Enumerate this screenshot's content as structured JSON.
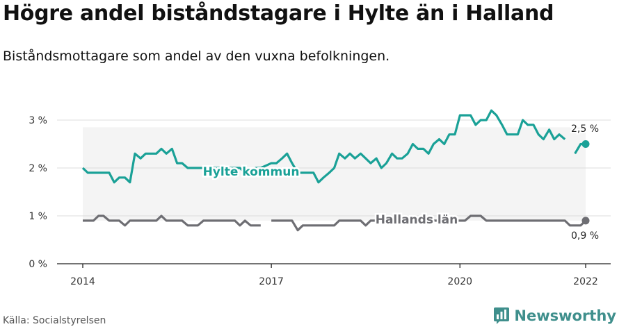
{
  "title": "Högre andel biståndstagare i Hylte än i Halland",
  "subtitle": "Biståndsmottagare som andel av den vuxna befolkningen.",
  "source": "Källa: Socialstyrelsen",
  "brand": "Newsworthy",
  "colors": {
    "hylte": "#1aa197",
    "halland": "#6e6e73",
    "band": "#f4f4f4",
    "grid": "#dddddd",
    "brand": "#3f8f8c"
  },
  "chart_data": {
    "type": "line",
    "x_ticks": [
      "2014",
      "2017",
      "2020",
      "2022"
    ],
    "y_ticks": [
      "0 %",
      "1 %",
      "2 %",
      "3 %"
    ],
    "ylim": [
      0,
      3.3
    ],
    "series": [
      {
        "name": "Hylte kommun",
        "end_label": "2,5 %",
        "points": [
          [
            2014.0,
            2.0
          ],
          [
            2014.08,
            1.9
          ],
          [
            2014.17,
            1.9
          ],
          [
            2014.25,
            1.9
          ],
          [
            2014.33,
            1.9
          ],
          [
            2014.42,
            1.9
          ],
          [
            2014.5,
            1.7
          ],
          [
            2014.58,
            1.8
          ],
          [
            2014.67,
            1.8
          ],
          [
            2014.75,
            1.7
          ],
          [
            2014.83,
            2.3
          ],
          [
            2014.92,
            2.2
          ],
          [
            2015.0,
            2.3
          ],
          [
            2015.08,
            2.3
          ],
          [
            2015.17,
            2.3
          ],
          [
            2015.25,
            2.4
          ],
          [
            2015.33,
            2.3
          ],
          [
            2015.42,
            2.4
          ],
          [
            2015.5,
            2.1
          ],
          [
            2015.58,
            2.1
          ],
          [
            2015.67,
            2.0
          ],
          [
            2015.75,
            2.0
          ],
          [
            2015.83,
            2.0
          ],
          [
            2016.0,
            2.0
          ],
          [
            2016.08,
            2.0
          ],
          [
            2016.17,
            2.0
          ],
          [
            2016.25,
            1.9
          ],
          [
            2016.33,
            2.0
          ],
          [
            2016.42,
            2.0
          ],
          [
            2016.5,
            2.0
          ],
          [
            2016.58,
            1.9
          ],
          [
            2016.67,
            1.9
          ],
          [
            2016.75,
            2.0
          ],
          [
            2016.83,
            2.0
          ],
          [
            2017.0,
            2.1
          ],
          [
            2017.08,
            2.1
          ],
          [
            2017.17,
            2.2
          ],
          [
            2017.25,
            2.3
          ],
          [
            2017.33,
            2.1
          ],
          [
            2017.42,
            1.9
          ],
          [
            2017.5,
            1.9
          ],
          [
            2017.58,
            1.9
          ],
          [
            2017.67,
            1.9
          ],
          [
            2017.75,
            1.7
          ],
          [
            2017.83,
            1.8
          ],
          [
            2017.92,
            1.9
          ],
          [
            2018.0,
            2.0
          ],
          [
            2018.08,
            2.3
          ],
          [
            2018.17,
            2.2
          ],
          [
            2018.25,
            2.3
          ],
          [
            2018.33,
            2.2
          ],
          [
            2018.42,
            2.3
          ],
          [
            2018.5,
            2.2
          ],
          [
            2018.58,
            2.1
          ],
          [
            2018.67,
            2.2
          ],
          [
            2018.75,
            2.0
          ],
          [
            2018.83,
            2.1
          ],
          [
            2018.92,
            2.3
          ],
          [
            2019.0,
            2.2
          ],
          [
            2019.08,
            2.2
          ],
          [
            2019.17,
            2.3
          ],
          [
            2019.25,
            2.5
          ],
          [
            2019.33,
            2.4
          ],
          [
            2019.42,
            2.4
          ],
          [
            2019.5,
            2.3
          ],
          [
            2019.58,
            2.5
          ],
          [
            2019.67,
            2.6
          ],
          [
            2019.75,
            2.5
          ],
          [
            2019.83,
            2.7
          ],
          [
            2019.92,
            2.7
          ],
          [
            2020.0,
            3.1
          ],
          [
            2020.08,
            3.1
          ],
          [
            2020.17,
            3.1
          ],
          [
            2020.25,
            2.9
          ],
          [
            2020.33,
            3.0
          ],
          [
            2020.42,
            3.0
          ],
          [
            2020.5,
            3.2
          ],
          [
            2020.58,
            3.1
          ],
          [
            2020.67,
            2.9
          ],
          [
            2020.75,
            2.7
          ],
          [
            2020.83,
            2.7
          ],
          [
            2020.92,
            2.7
          ],
          [
            2021.0,
            3.0
          ],
          [
            2021.08,
            2.9
          ],
          [
            2021.17,
            2.9
          ],
          [
            2021.25,
            2.7
          ],
          [
            2021.33,
            2.6
          ],
          [
            2021.42,
            2.8
          ],
          [
            2021.5,
            2.6
          ],
          [
            2021.58,
            2.7
          ],
          [
            2021.67,
            2.6
          ],
          null,
          [
            2021.83,
            2.3
          ],
          [
            2021.92,
            2.5
          ],
          [
            2022.0,
            2.5
          ]
        ]
      },
      {
        "name": "Hallands län",
        "end_label": "0,9 %",
        "points": [
          [
            2014.0,
            0.9
          ],
          [
            2014.08,
            0.9
          ],
          [
            2014.17,
            0.9
          ],
          [
            2014.25,
            1.0
          ],
          [
            2014.33,
            1.0
          ],
          [
            2014.42,
            0.9
          ],
          [
            2014.5,
            0.9
          ],
          [
            2014.58,
            0.9
          ],
          [
            2014.67,
            0.8
          ],
          [
            2014.75,
            0.9
          ],
          [
            2014.83,
            0.9
          ],
          [
            2014.92,
            0.9
          ],
          [
            2015.0,
            0.9
          ],
          [
            2015.08,
            0.9
          ],
          [
            2015.17,
            0.9
          ],
          [
            2015.25,
            1.0
          ],
          [
            2015.33,
            0.9
          ],
          [
            2015.42,
            0.9
          ],
          [
            2015.5,
            0.9
          ],
          [
            2015.58,
            0.9
          ],
          [
            2015.67,
            0.8
          ],
          [
            2015.75,
            0.8
          ],
          [
            2015.83,
            0.8
          ],
          [
            2015.92,
            0.9
          ],
          [
            2016.0,
            0.9
          ],
          [
            2016.08,
            0.9
          ],
          [
            2016.17,
            0.9
          ],
          [
            2016.25,
            0.9
          ],
          [
            2016.33,
            0.9
          ],
          [
            2016.42,
            0.9
          ],
          [
            2016.5,
            0.8
          ],
          [
            2016.58,
            0.9
          ],
          [
            2016.67,
            0.8
          ],
          [
            2016.75,
            0.8
          ],
          [
            2016.83,
            0.8
          ],
          null,
          [
            2017.0,
            0.9
          ],
          [
            2017.08,
            0.9
          ],
          [
            2017.17,
            0.9
          ],
          [
            2017.25,
            0.9
          ],
          [
            2017.33,
            0.9
          ],
          [
            2017.42,
            0.7
          ],
          [
            2017.5,
            0.8
          ],
          [
            2017.58,
            0.8
          ],
          [
            2017.67,
            0.8
          ],
          [
            2017.75,
            0.8
          ],
          [
            2017.83,
            0.8
          ],
          [
            2017.92,
            0.8
          ],
          [
            2018.0,
            0.8
          ],
          [
            2018.08,
            0.9
          ],
          [
            2018.17,
            0.9
          ],
          [
            2018.25,
            0.9
          ],
          [
            2018.33,
            0.9
          ],
          [
            2018.42,
            0.9
          ],
          [
            2018.5,
            0.8
          ],
          [
            2018.58,
            0.9
          ],
          [
            2018.67,
            0.9
          ],
          [
            2018.75,
            0.9
          ],
          [
            2018.83,
            0.9
          ],
          [
            2018.92,
            0.9
          ],
          [
            2019.0,
            0.9
          ],
          [
            2019.08,
            0.9
          ],
          [
            2019.17,
            0.9
          ],
          [
            2019.25,
            0.9
          ],
          [
            2019.33,
            0.9
          ],
          [
            2019.42,
            0.9
          ],
          [
            2019.5,
            0.9
          ],
          [
            2019.58,
            0.9
          ],
          [
            2019.67,
            0.9
          ],
          [
            2019.75,
            0.9
          ],
          [
            2019.83,
            0.9
          ],
          [
            2019.92,
            0.9
          ],
          [
            2020.0,
            0.9
          ],
          [
            2020.08,
            0.9
          ],
          [
            2020.17,
            1.0
          ],
          [
            2020.25,
            1.0
          ],
          [
            2020.33,
            1.0
          ],
          [
            2020.42,
            0.9
          ],
          [
            2020.5,
            0.9
          ],
          [
            2020.58,
            0.9
          ],
          [
            2020.67,
            0.9
          ],
          [
            2020.75,
            0.9
          ],
          [
            2020.83,
            0.9
          ],
          [
            2020.92,
            0.9
          ],
          [
            2021.0,
            0.9
          ],
          [
            2021.08,
            0.9
          ],
          [
            2021.17,
            0.9
          ],
          [
            2021.25,
            0.9
          ],
          [
            2021.33,
            0.9
          ],
          [
            2021.42,
            0.9
          ],
          [
            2021.5,
            0.9
          ],
          [
            2021.58,
            0.9
          ],
          [
            2021.67,
            0.9
          ],
          [
            2021.75,
            0.8
          ],
          [
            2021.83,
            0.8
          ],
          [
            2021.92,
            0.8
          ],
          [
            2022.0,
            0.9
          ]
        ]
      }
    ]
  }
}
